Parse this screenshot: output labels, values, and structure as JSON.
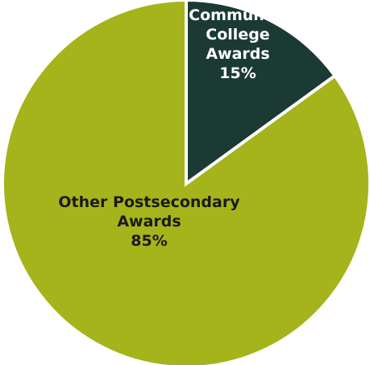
{
  "chart_data": {
    "type": "pie",
    "title": "",
    "start_angle_deg": 0,
    "direction": "clockwise",
    "slices": [
      {
        "category_lines": [
          "Community",
          "College",
          "Awards"
        ],
        "value_label": "15%",
        "value": 15,
        "color": "#1c3a34",
        "label_color": "#ffffff"
      },
      {
        "category_lines": [
          "Other Postsecondary",
          "Awards"
        ],
        "value_label": "85%",
        "value": 85,
        "color": "#a5b41a",
        "label_color": "#1a1a1a"
      }
    ],
    "separator_color": "#ffffff"
  }
}
